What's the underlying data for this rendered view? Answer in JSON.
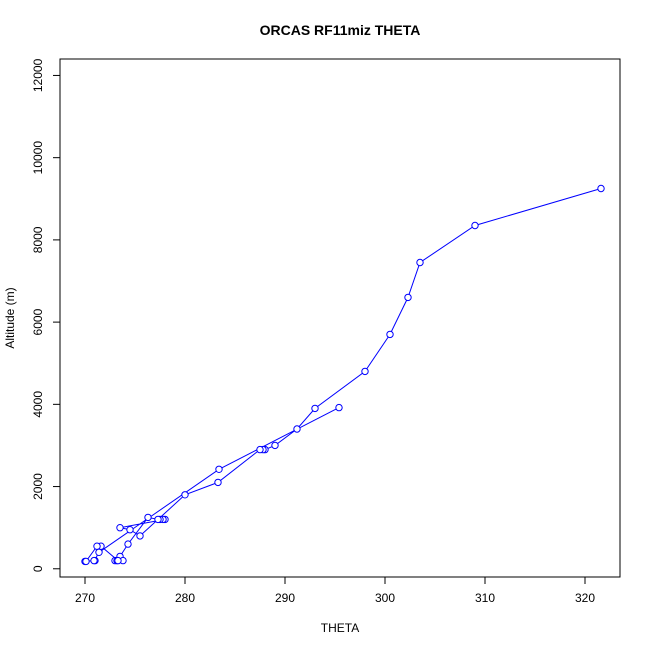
{
  "chart_data": {
    "type": "line",
    "title": "ORCAS RF11miz THETA",
    "xlabel": "THETA",
    "ylabel": "Altitude (m)",
    "xlim": [
      267.5,
      323.5
    ],
    "ylim": [
      -200,
      12400
    ],
    "x_ticks": [
      270,
      280,
      290,
      300,
      310,
      320
    ],
    "y_ticks": [
      0,
      2000,
      4000,
      6000,
      8000,
      10000,
      12000
    ],
    "grid": false,
    "legend": "none",
    "colors": {
      "series": "#0000ff",
      "axis": "#000000",
      "background": "#ffffff"
    },
    "series": [
      {
        "marker": "open-circle",
        "x": [
          321.6,
          309.0,
          303.5,
          302.3,
          300.5,
          298.0,
          293.0,
          291.2,
          289.0,
          288.0,
          287.8,
          287.5,
          283.3,
          280.0,
          275.5,
          274.5,
          273.5,
          278.0,
          277.8,
          277.5,
          277.3,
          276.3,
          274.3,
          273.5,
          273.0,
          273.2,
          273.8,
          273.3,
          271.6,
          271.0,
          270.9,
          270.0,
          270.1,
          271.2,
          271.4,
          283.4,
          295.4
        ],
        "y": [
          9250,
          8350,
          7450,
          6600,
          5700,
          4800,
          3900,
          3400,
          3000,
          2900,
          2900,
          2900,
          2100,
          1800,
          800,
          950,
          1000,
          1200,
          1200,
          1200,
          1200,
          1250,
          600,
          300,
          200,
          200,
          200,
          200,
          550,
          200,
          200,
          180,
          180,
          550,
          400,
          2420,
          3920
        ]
      }
    ]
  }
}
